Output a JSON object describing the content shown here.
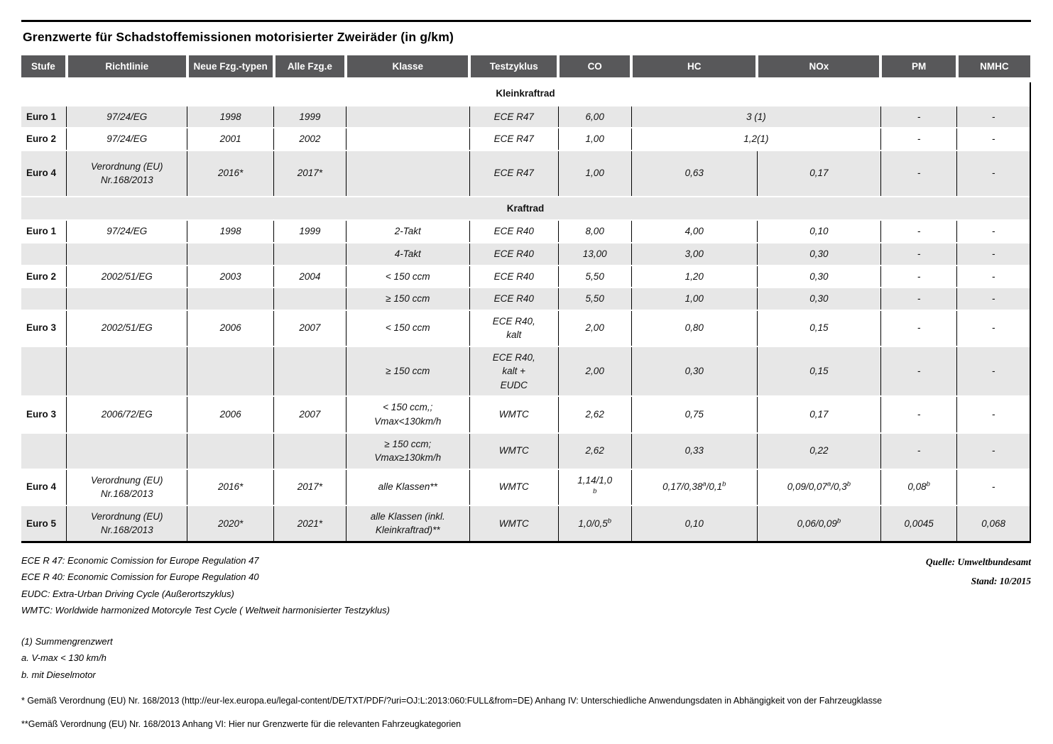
{
  "title": "Grenzwerte für Schadstoffemissionen motorisierter Zweiräder (in g/km)",
  "colors": {
    "header_bg": "#58585A",
    "stripe_bg": "#E7E7E7",
    "rule": "#000000"
  },
  "table": {
    "columns": [
      "Stufe",
      "Richtlinie",
      "Neue Fzg.-typen",
      "Alle Fzg.e",
      "Klasse",
      "Testzyklus",
      "CO",
      "HC",
      "NOx",
      "PM",
      "NMHC"
    ],
    "rows": [
      {
        "section": "Kleinkraftrad",
        "stripe": false
      },
      {
        "stripe": true,
        "cells": [
          "Euro 1",
          "97/24/EG",
          "1998",
          "1999",
          "",
          "ECE R47",
          "6,00",
          {
            "t": "3 (1)",
            "span": 2
          },
          "-",
          "-"
        ]
      },
      {
        "stripe": false,
        "cells": [
          "Euro 2",
          "97/24/EG",
          "2001",
          "2002",
          "",
          "ECE R47",
          "1,00",
          {
            "t": "1,2(1)",
            "span": 2
          },
          "-",
          "-"
        ]
      },
      {
        "stripe": true,
        "pad": true,
        "cells": [
          "Euro 4",
          "Verordnung (EU)\nNr.168/2013",
          "2016*",
          "2017*",
          "",
          "ECE R47",
          "1,00",
          "0,63",
          "0,17",
          "-",
          "-"
        ]
      },
      {
        "section": "Kraftrad",
        "stripe": true
      },
      {
        "stripe": false,
        "cells": [
          "Euro 1",
          "97/24/EG",
          "1998",
          "1999",
          "2-Takt",
          "ECE R40",
          "8,00",
          "4,00",
          "0,10",
          "-",
          "-"
        ]
      },
      {
        "stripe": true,
        "cells": [
          "",
          "",
          "",
          "",
          "4-Takt",
          "ECE R40",
          "13,00",
          "3,00",
          "0,30",
          "-",
          "-"
        ]
      },
      {
        "stripe": false,
        "cells": [
          "Euro 2",
          "2002/51/EG",
          "2003",
          "2004",
          "< 150 ccm",
          "ECE R40",
          "5,50",
          "1,20",
          "0,30",
          "-",
          "-"
        ]
      },
      {
        "stripe": true,
        "cells": [
          "",
          "",
          "",
          "",
          "≥ 150 ccm",
          "ECE R40",
          "5,50",
          "1,00",
          "0,30",
          "-",
          "-"
        ]
      },
      {
        "stripe": false,
        "cells": [
          "Euro 3",
          "2002/51/EG",
          "2006",
          "2007",
          "< 150 ccm",
          "ECE R40,\nkalt",
          "2,00",
          "0,80",
          "0,15",
          "-",
          "-"
        ]
      },
      {
        "stripe": true,
        "cells": [
          "",
          "",
          "",
          "",
          "≥ 150 ccm",
          "ECE R40,\nkalt +\nEUDC",
          "2,00",
          "0,30",
          "0,15",
          "-",
          "-"
        ]
      },
      {
        "stripe": false,
        "cells": [
          "Euro 3",
          "2006/72/EG",
          "2006",
          "2007",
          "< 150 ccm,;\nVmax<130km/h",
          "WMTC",
          "2,62",
          "0,75",
          "0,17",
          "-",
          "-"
        ]
      },
      {
        "stripe": true,
        "cells": [
          "",
          "",
          "",
          "",
          "≥ 150 ccm;\nVmax≥130km/h",
          "WMTC",
          "2,62",
          "0,33",
          "0,22",
          "-",
          "-"
        ]
      },
      {
        "stripe": false,
        "cells": [
          "Euro 4",
          "Verordnung (EU)\nNr.168/2013",
          "2016*",
          "2017*",
          "alle Klassen**",
          "WMTC",
          "1,14/1,0\n^b^",
          "0,17/0,38^a^/0,1^b^",
          "0,09/0,07^a^/0,3^b^",
          "0,08^b^",
          "-"
        ]
      },
      {
        "stripe": true,
        "cells": [
          "Euro 5",
          "Verordnung (EU)\nNr.168/2013",
          "2020*",
          "2021*",
          "alle Klassen (inkl.\nKleinkraftrad)**",
          "WMTC",
          "1,0/0,5^b^",
          "0,10",
          "0,06/0,09^b^",
          "0,0045",
          "0,068"
        ]
      }
    ]
  },
  "footnotes": {
    "abbreviations": [
      "ECE R 47: Economic Comission for Europe Regulation 47",
      "ECE R 40: Economic Comission for Europe Regulation 40",
      "EUDC: Extra-Urban Driving Cycle (Außerortszyklus)",
      "WMTC: Worldwide harmonized Motorcyle Test Cycle ( Weltweit harmonisierter Testzyklus)"
    ],
    "notes": [
      "(1) Summengrenzwert",
      "a. V-max < 130 km/h",
      "b. mit Dieselmotor"
    ],
    "star_notes": [
      "* Gemäß Verordnung (EU) Nr. 168/2013 (http://eur-lex.europa.eu/legal-content/DE/TXT/PDF/?uri=OJ:L:2013:060:FULL&from=DE) Anhang IV: Unterschiedliche Anwendungsdaten in Abhängigkeit von der Fahrzeugklasse",
      "**Gemäß Verordnung (EU) Nr. 168/2013 Anhang VI: Hier nur Grenzwerte für die relevanten Fahrzeugkategorien"
    ]
  },
  "source": {
    "quelle": "Quelle: Umweltbundesamt",
    "stand": "Stand: 10/2015"
  }
}
